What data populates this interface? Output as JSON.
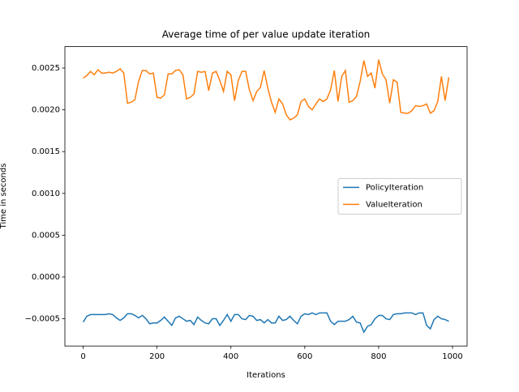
{
  "chart_data": {
    "type": "line",
    "title": "Average time of per value update iteration",
    "x_label": "Iterations",
    "y_label": "Time in seconds",
    "x": [
      0,
      10,
      20,
      30,
      40,
      50,
      60,
      70,
      80,
      90,
      100,
      110,
      120,
      130,
      140,
      150,
      160,
      170,
      180,
      190,
      200,
      210,
      220,
      230,
      240,
      250,
      260,
      270,
      280,
      290,
      300,
      310,
      320,
      330,
      340,
      350,
      360,
      370,
      380,
      390,
      400,
      410,
      420,
      430,
      440,
      450,
      460,
      470,
      480,
      490,
      500,
      510,
      520,
      530,
      540,
      550,
      560,
      570,
      580,
      590,
      600,
      610,
      620,
      630,
      640,
      650,
      660,
      670,
      680,
      690,
      700,
      710,
      720,
      730,
      740,
      750,
      760,
      770,
      780,
      790,
      800,
      810,
      820,
      830,
      840,
      850,
      860,
      870,
      880,
      890,
      900,
      910,
      920,
      930,
      940,
      950,
      960,
      970,
      980,
      990
    ],
    "series": [
      {
        "name": "PolicyIteration",
        "color": "#1f77b4",
        "values": [
          -0.00054,
          -0.00047,
          -0.00045,
          -0.00045,
          -0.00045,
          -0.00045,
          -0.00045,
          -0.00044,
          -0.00045,
          -0.00049,
          -0.00052,
          -0.00049,
          -0.00044,
          -0.00044,
          -0.00046,
          -0.00049,
          -0.00046,
          -0.0005,
          -0.00056,
          -0.00055,
          -0.00055,
          -0.00052,
          -0.00048,
          -0.00053,
          -0.00058,
          -0.00049,
          -0.00047,
          -0.0005,
          -0.00053,
          -0.00052,
          -0.00057,
          -0.00048,
          -0.00052,
          -0.00055,
          -0.00056,
          -0.0005,
          -0.0005,
          -0.00058,
          -0.00052,
          -0.00045,
          -0.00053,
          -0.00045,
          -0.00045,
          -0.0005,
          -0.00051,
          -0.00046,
          -0.00047,
          -0.00052,
          -0.00051,
          -0.00055,
          -0.00051,
          -0.00055,
          -0.00055,
          -0.00047,
          -0.00052,
          -0.00051,
          -0.00047,
          -0.00052,
          -0.00056,
          -0.00047,
          -0.00044,
          -0.00045,
          -0.00043,
          -0.00045,
          -0.00043,
          -0.00043,
          -0.00043,
          -0.00053,
          -0.00057,
          -0.00053,
          -0.00053,
          -0.00053,
          -0.00051,
          -0.00047,
          -0.00054,
          -0.00055,
          -0.00066,
          -0.00059,
          -0.00057,
          -0.0005,
          -0.00046,
          -0.00046,
          -0.0005,
          -0.00051,
          -0.00045,
          -0.00044,
          -0.00044,
          -0.00043,
          -0.00043,
          -0.00043,
          -0.00045,
          -0.00043,
          -0.00043,
          -0.00058,
          -0.00062,
          -0.00051,
          -0.00047,
          -0.0005,
          -0.00051,
          -0.00053
        ]
      },
      {
        "name": "ValueIteration",
        "color": "#ff7f0e",
        "values": [
          0.00238,
          0.00241,
          0.00246,
          0.00242,
          0.00248,
          0.00244,
          0.00244,
          0.00245,
          0.00244,
          0.00246,
          0.00249,
          0.00244,
          0.00208,
          0.00209,
          0.00212,
          0.00234,
          0.00247,
          0.00247,
          0.00243,
          0.00244,
          0.00215,
          0.00214,
          0.00218,
          0.00243,
          0.00243,
          0.00247,
          0.00248,
          0.00242,
          0.00213,
          0.00215,
          0.00219,
          0.00246,
          0.00245,
          0.00246,
          0.00223,
          0.00244,
          0.00246,
          0.00235,
          0.00222,
          0.00246,
          0.00242,
          0.00211,
          0.00235,
          0.00246,
          0.00246,
          0.00224,
          0.00211,
          0.00222,
          0.00227,
          0.00247,
          0.00226,
          0.00209,
          0.00197,
          0.00213,
          0.00207,
          0.00194,
          0.00188,
          0.0019,
          0.00194,
          0.0021,
          0.00213,
          0.00204,
          0.002,
          0.00207,
          0.00213,
          0.0021,
          0.00213,
          0.00224,
          0.00247,
          0.0021,
          0.0024,
          0.00247,
          0.00209,
          0.00211,
          0.00216,
          0.00234,
          0.00259,
          0.0024,
          0.00244,
          0.00226,
          0.0026,
          0.00243,
          0.00236,
          0.00208,
          0.00236,
          0.00233,
          0.00197,
          0.00196,
          0.00196,
          0.00199,
          0.00205,
          0.00204,
          0.00205,
          0.00207,
          0.00196,
          0.00199,
          0.0021,
          0.0024,
          0.00211,
          0.00239
        ]
      }
    ],
    "xlim": [
      -49.5,
      1039.5
    ],
    "xticks": [
      0,
      200,
      400,
      600,
      800,
      1000
    ],
    "ylim": [
      -0.000826,
      0.002756
    ],
    "yticks": [
      {
        "value": -0.0005,
        "label": "−0.0005"
      },
      {
        "value": 0,
        "label": "0.0000"
      },
      {
        "value": 0.0005,
        "label": "0.0005"
      },
      {
        "value": 0.001,
        "label": "0.0010"
      },
      {
        "value": 0.0015,
        "label": "0.0015"
      },
      {
        "value": 0.002,
        "label": "0.0020"
      },
      {
        "value": 0.0025,
        "label": "0.0025"
      }
    ],
    "grid": false,
    "legend": "center right"
  }
}
